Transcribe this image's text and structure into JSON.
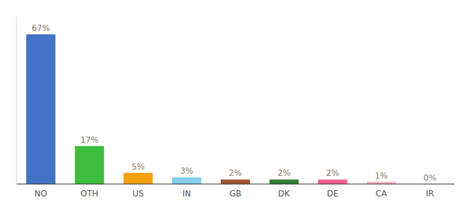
{
  "chart_data": {
    "type": "bar",
    "categories": [
      "NO",
      "OTH",
      "US",
      "IN",
      "GB",
      "DK",
      "DE",
      "CA",
      "IR"
    ],
    "values": [
      67,
      17,
      5,
      3,
      2,
      2,
      2,
      1,
      0
    ],
    "value_labels": [
      "67%",
      "17%",
      "5%",
      "3%",
      "2%",
      "2%",
      "2%",
      "1%",
      "0%"
    ],
    "colors": [
      "#4472C4",
      "#3DBE3D",
      "#F4A010",
      "#87CEEB",
      "#A0522D",
      "#2E7D32",
      "#F06090",
      "#FFB0C0",
      "#FFFFFF"
    ],
    "ylim": [
      0,
      75
    ],
    "data_labels": true,
    "tick_labels": "x"
  }
}
